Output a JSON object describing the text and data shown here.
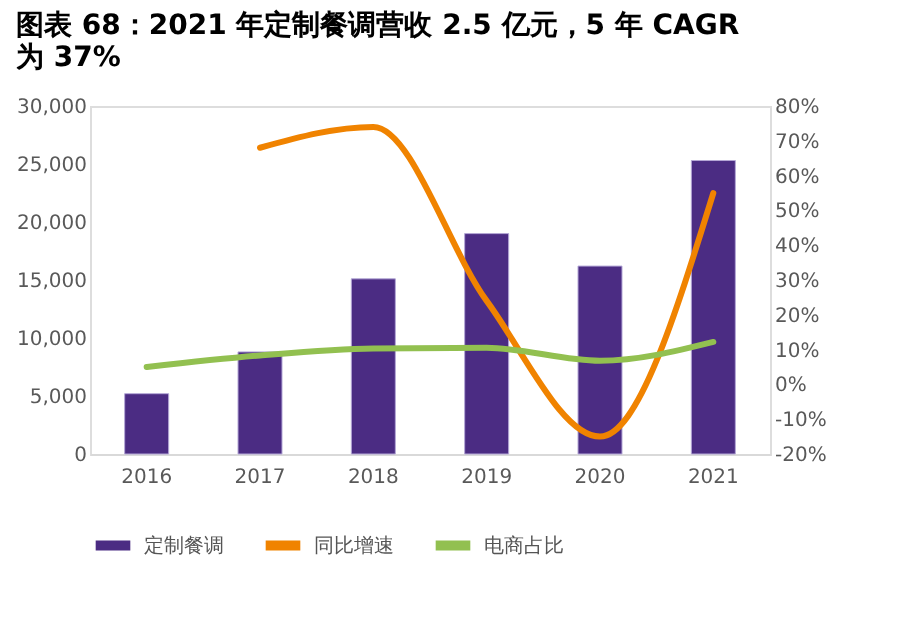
{
  "chart_data": {
    "type": "bar",
    "title": "图表 68：2021 年定制餐调营收 2.5 亿元，5 年 CAGR\n为 37%",
    "categories": [
      "2016",
      "2017",
      "2018",
      "2019",
      "2020",
      "2021"
    ],
    "series": [
      {
        "name": "定制餐调",
        "color": "#4b2c83",
        "values": [
          5200,
          8800,
          15100,
          19000,
          16200,
          25300
        ]
      },
      {
        "name": "同比增速",
        "color": "#f08300",
        "type": "line",
        "axis": "y2",
        "values": [
          null,
          68,
          74,
          24,
          -15,
          55
        ]
      },
      {
        "name": "电商占比",
        "color": "#92c050",
        "type": "line",
        "axis": "y2",
        "values": [
          5,
          8.3,
          10.3,
          10.5,
          6.8,
          12.2
        ]
      }
    ],
    "ylim": [
      0,
      30000
    ],
    "yticks": [
      {
        "value": 0,
        "label": "0"
      },
      {
        "value": 5000,
        "label": "5,000"
      },
      {
        "value": 10000,
        "label": "10,000"
      },
      {
        "value": 15000,
        "label": "15,000"
      },
      {
        "value": 20000,
        "label": "20,000"
      },
      {
        "value": 25000,
        "label": "25,000"
      },
      {
        "value": 30000,
        "label": "30,000"
      }
    ],
    "y2lim": [
      -20,
      80
    ],
    "y2ticks": [
      {
        "value": -20,
        "label": "-20%"
      },
      {
        "value": -10,
        "label": "-10%"
      },
      {
        "value": 0,
        "label": "0%"
      },
      {
        "value": 10,
        "label": "10%"
      },
      {
        "value": 20,
        "label": "20%"
      },
      {
        "value": 30,
        "label": "30%"
      },
      {
        "value": 40,
        "label": "40%"
      },
      {
        "value": 50,
        "label": "50%"
      },
      {
        "value": 60,
        "label": "60%"
      },
      {
        "value": 70,
        "label": "70%"
      },
      {
        "value": 80,
        "label": "80%"
      }
    ],
    "grid": false,
    "legend": "bottom"
  }
}
